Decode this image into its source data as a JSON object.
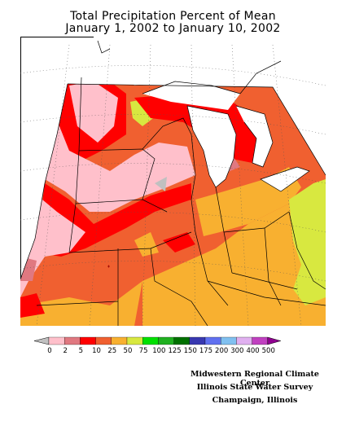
{
  "title_line1": "Total Precipitation Percent of Mean",
  "title_line2": "January 1, 2002 to January 10, 2002",
  "legend": {
    "ticks": [
      "0",
      "2",
      "5",
      "10",
      "25",
      "50",
      "75",
      "100",
      "125",
      "150",
      "175",
      "200",
      "300",
      "400",
      "500"
    ],
    "colors": [
      "#c0c0c0",
      "#ffc0cb",
      "#e07880",
      "#ff0000",
      "#f06030",
      "#f8b030",
      "#d8e840",
      "#00e000",
      "#20b020",
      "#007000",
      "#3838b0",
      "#6070f0",
      "#80c0f0",
      "#e0b0f0",
      "#c040c0",
      "#900090"
    ]
  },
  "credits": {
    "line1": "Midwestern Regional Climate Center",
    "line2": "Illinois State Water Survey",
    "line3": "Champaign, Illinois"
  }
}
